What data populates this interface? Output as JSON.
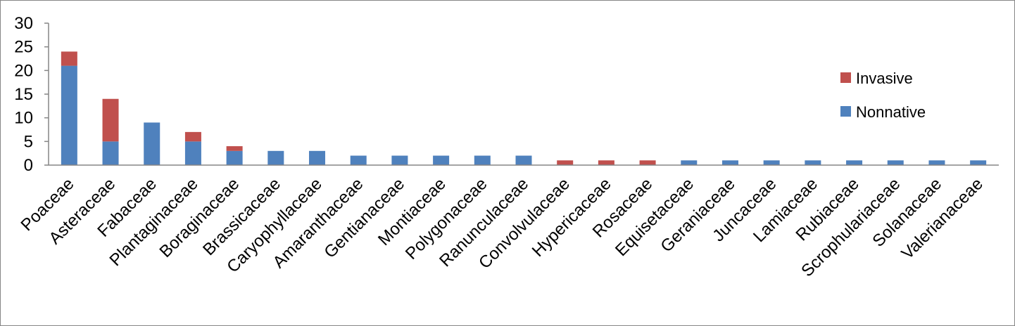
{
  "chart_data": {
    "type": "bar",
    "stacked": true,
    "categories": [
      "Poaceae",
      "Asteraceae",
      "Fabaceae",
      "Plantaginaceae",
      "Boraginaceae",
      "Brassicaceae",
      "Caryophyllaceae",
      "Amaranthaceae",
      "Gentianaceae",
      "Montiaceae",
      "Polygonaceae",
      "Ranunculaceae",
      "Convolvulaceae",
      "Hypericaceae",
      "Rosaceae",
      "Equisetaceae",
      "Geraniaceae",
      "Juncaceae",
      "Lamiaceae",
      "Rubiaceae",
      "Scrophulariaceae",
      "Solanaceae",
      "Valerianaceae"
    ],
    "series": [
      {
        "name": "Nonnative",
        "color": "#4f81bd",
        "values": [
          21,
          5,
          9,
          5,
          3,
          3,
          3,
          2,
          2,
          2,
          2,
          2,
          0,
          0,
          0,
          1,
          1,
          1,
          1,
          1,
          1,
          1,
          1
        ]
      },
      {
        "name": "Invasive",
        "color": "#c0504d",
        "values": [
          3,
          9,
          0,
          2,
          1,
          0,
          0,
          0,
          0,
          0,
          0,
          0,
          1,
          1,
          1,
          0,
          0,
          0,
          0,
          0,
          0,
          0,
          0
        ]
      }
    ],
    "ylim": [
      0,
      30
    ],
    "yticks": [
      "0",
      "5",
      "10",
      "15",
      "20",
      "25",
      "30"
    ],
    "legend": {
      "position": "right",
      "entries": [
        "Invasive",
        "Nonnative"
      ]
    },
    "grid": false,
    "title": "",
    "xlabel": "",
    "ylabel": ""
  }
}
